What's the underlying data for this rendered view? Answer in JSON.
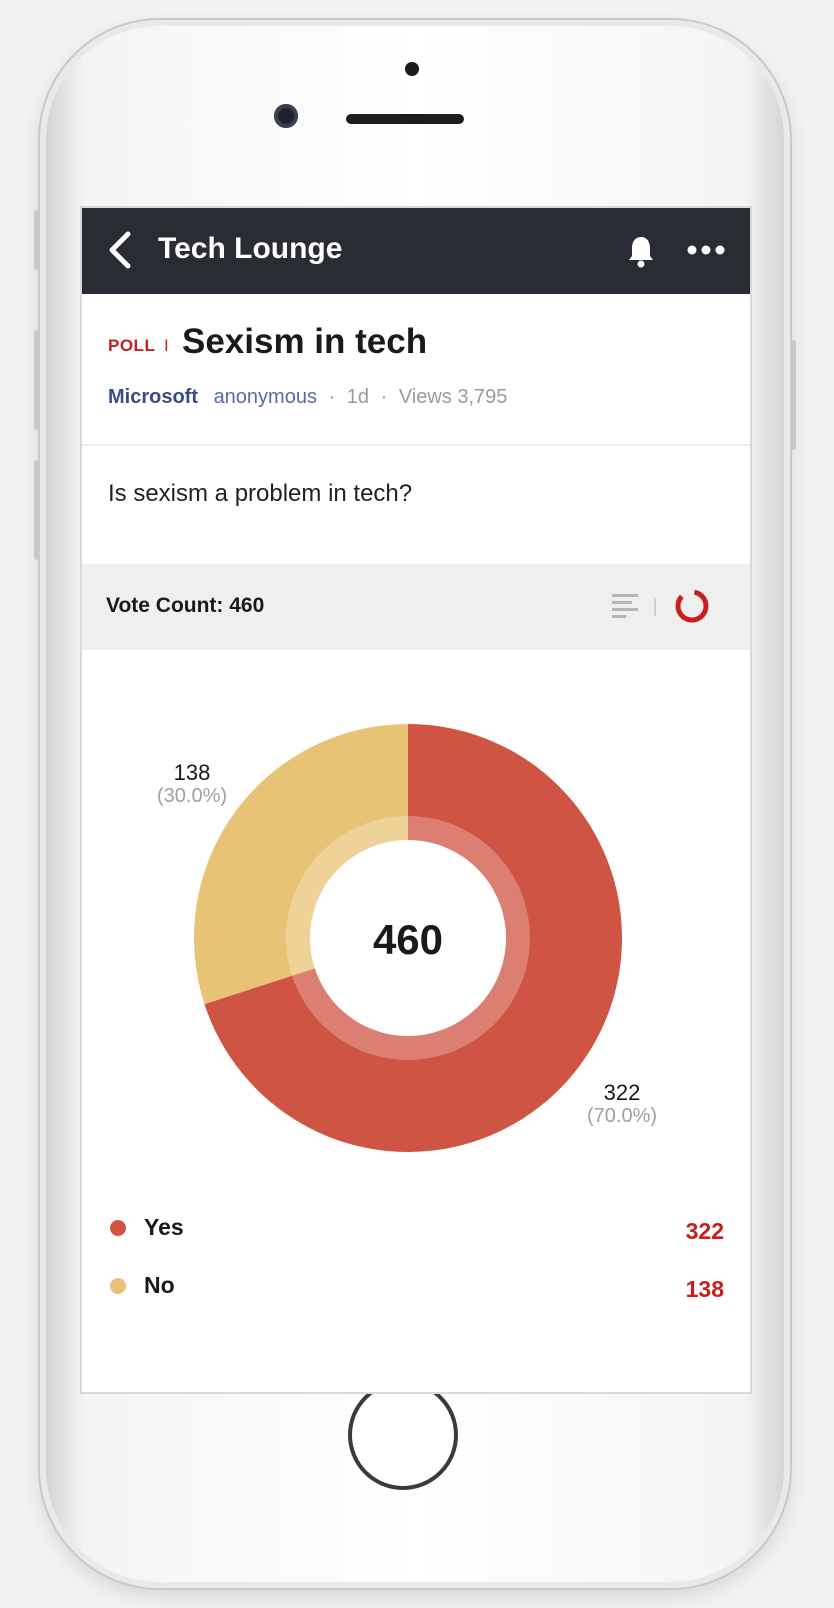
{
  "topbar": {
    "title": "Tech Lounge",
    "back_icon": "chevron-left-icon",
    "bell_icon": "bell-icon",
    "more_icon": "more-horizontal-icon"
  },
  "post": {
    "tag": "POLL",
    "tag_separator": "I",
    "title": "Sexism in tech",
    "company": "Microsoft",
    "author": "anonymous",
    "separator": "·",
    "age": "1d",
    "views": "Views 3,795",
    "question": "Is sexism a problem in tech?"
  },
  "vote_bar": {
    "label": "Vote Count: 460"
  },
  "colors": {
    "yes": "#cf5443",
    "no": "#e8c375",
    "accent": "#c81e1e",
    "topbar": "#2a2c33"
  },
  "chart_data": {
    "type": "pie",
    "total": 460,
    "center_label": "460",
    "slices": [
      {
        "label": "Yes",
        "value": 322,
        "percent_label": "(70.0%)",
        "value_label": "322",
        "color": "#cf5443"
      },
      {
        "label": "No",
        "value": 138,
        "percent_label": "(30.0%)",
        "value_label": "138",
        "color": "#e8c375"
      }
    ],
    "legend": [
      {
        "label": "Yes",
        "value": "322",
        "color": "#cf5443"
      },
      {
        "label": "No",
        "value": "138",
        "color": "#e8c375"
      }
    ]
  }
}
